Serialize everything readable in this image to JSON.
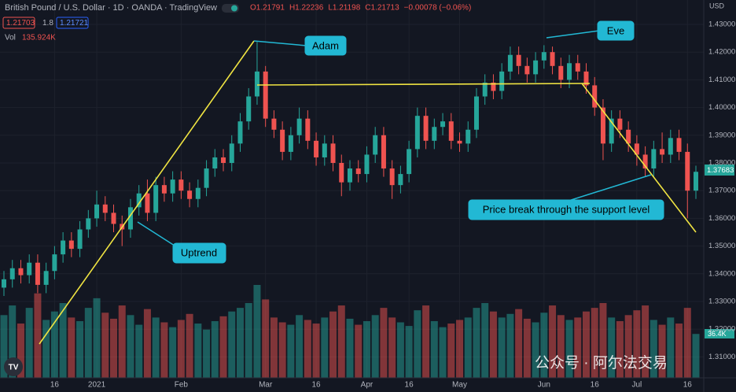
{
  "chart_data": {
    "type": "candlestick",
    "title": "British Pound / U.S. Dollar · 1D · OANDA · TradingView",
    "ohlc_legend": [
      "O1.21791",
      "H1.22236",
      "L1.21198",
      "C1.21713",
      "−0.00078 (−0.06%)"
    ],
    "bid": "1.21703",
    "spread": "1.8",
    "ask": "1.21721",
    "volume_name": "Vol",
    "volume_value": "135.924K",
    "volume_last": "36.4K",
    "currency": "USD",
    "current_price": "1.37683",
    "watermark": "公众号 · 阿尔法交易",
    "logo": "TV",
    "annotations": [
      "Adam",
      "Eve",
      "Uptrend",
      "Price break through the support level"
    ],
    "up_color": "#26a69a",
    "down_color": "#ef5350",
    "ylim": [
      1.30244,
      1.43881
    ],
    "yticks": [
      {
        "value": 1.31,
        "label": "1.31000"
      },
      {
        "value": 1.32,
        "label": "1.32000"
      },
      {
        "value": 1.33,
        "label": "1.33000"
      },
      {
        "value": 1.34,
        "label": "1.34000"
      },
      {
        "value": 1.35,
        "label": "1.35000"
      },
      {
        "value": 1.36,
        "label": "1.36000"
      },
      {
        "value": 1.37,
        "label": "1.37000"
      },
      {
        "value": 1.38,
        "label": "1.38000"
      },
      {
        "value": 1.39,
        "label": "1.39000"
      },
      {
        "value": 1.4,
        "label": "1.40000"
      },
      {
        "value": 1.41,
        "label": "1.41000"
      },
      {
        "value": 1.42,
        "label": "1.42000"
      },
      {
        "value": 1.43,
        "label": "1.43000"
      }
    ],
    "categories": [
      null,
      null,
      null,
      null,
      null,
      null,
      "16",
      null,
      null,
      null,
      null,
      "2021",
      null,
      null,
      null,
      null,
      null,
      null,
      null,
      null,
      null,
      "Feb",
      null,
      null,
      null,
      null,
      null,
      null,
      null,
      null,
      null,
      "Mar",
      null,
      null,
      null,
      null,
      null,
      "16",
      null,
      null,
      null,
      null,
      null,
      "Apr",
      null,
      null,
      null,
      null,
      "16",
      null,
      null,
      null,
      null,
      null,
      "May",
      null,
      null,
      null,
      null,
      null,
      null,
      null,
      null,
      null,
      "Jun",
      null,
      null,
      null,
      null,
      null,
      "16",
      null,
      null,
      null,
      null,
      "Jul",
      null,
      null,
      null,
      null,
      null,
      "16",
      null
    ],
    "open": [
      1.335,
      1.338,
      1.342,
      1.3395,
      1.344,
      1.336,
      1.341,
      1.347,
      1.352,
      1.349,
      1.356,
      1.36,
      1.365,
      1.362,
      1.358,
      1.356,
      1.364,
      1.369,
      1.362,
      1.372,
      1.369,
      1.374,
      1.37,
      1.367,
      1.371,
      1.378,
      1.382,
      1.38,
      1.387,
      1.395,
      1.404,
      1.413,
      1.396,
      1.392,
      1.384,
      1.39,
      1.396,
      1.388,
      1.382,
      1.387,
      1.38,
      1.373,
      1.378,
      1.376,
      1.383,
      1.39,
      1.378,
      1.372,
      1.376,
      1.385,
      1.397,
      1.388,
      1.393,
      1.395,
      1.388,
      1.387,
      1.392,
      1.404,
      1.409,
      1.406,
      1.413,
      1.419,
      1.415,
      1.412,
      1.417,
      1.42,
      1.415,
      1.41,
      1.416,
      1.413,
      1.408,
      1.4,
      1.387,
      1.396,
      1.392,
      1.387,
      1.383,
      1.378,
      1.385,
      1.383,
      1.389,
      1.384,
      1.37
    ],
    "high": [
      1.341,
      1.345,
      1.345,
      1.347,
      1.347,
      1.344,
      1.35,
      1.355,
      1.355,
      1.359,
      1.363,
      1.37,
      1.368,
      1.365,
      1.361,
      1.367,
      1.372,
      1.374,
      1.375,
      1.375,
      1.377,
      1.377,
      1.373,
      1.374,
      1.381,
      1.385,
      1.385,
      1.39,
      1.398,
      1.407,
      1.4237,
      1.415,
      1.399,
      1.395,
      1.393,
      1.4,
      1.399,
      1.391,
      1.39,
      1.39,
      1.383,
      1.381,
      1.381,
      1.386,
      1.393,
      1.393,
      1.381,
      1.379,
      1.388,
      1.4,
      1.4,
      1.396,
      1.398,
      1.398,
      1.391,
      1.395,
      1.407,
      1.412,
      1.412,
      1.416,
      1.422,
      1.422,
      1.418,
      1.42,
      1.4225,
      1.422,
      1.418,
      1.419,
      1.419,
      1.416,
      1.411,
      1.403,
      1.399,
      1.399,
      1.395,
      1.39,
      1.386,
      1.388,
      1.391,
      1.392,
      1.392,
      1.387,
      1.379
    ],
    "low": [
      1.332,
      1.335,
      1.3365,
      1.3365,
      1.333,
      1.333,
      1.338,
      1.344,
      1.346,
      1.346,
      1.353,
      1.357,
      1.359,
      1.355,
      1.35,
      1.353,
      1.361,
      1.359,
      1.359,
      1.366,
      1.366,
      1.367,
      1.364,
      1.364,
      1.368,
      1.375,
      1.377,
      1.377,
      1.384,
      1.392,
      1.401,
      1.393,
      1.389,
      1.381,
      1.381,
      1.387,
      1.385,
      1.379,
      1.379,
      1.377,
      1.368,
      1.37,
      1.373,
      1.373,
      1.38,
      1.375,
      1.367,
      1.369,
      1.373,
      1.382,
      1.385,
      1.385,
      1.39,
      1.385,
      1.384,
      1.384,
      1.389,
      1.401,
      1.403,
      1.403,
      1.41,
      1.412,
      1.409,
      1.409,
      1.414,
      1.412,
      1.407,
      1.407,
      1.41,
      1.405,
      1.397,
      1.381,
      1.384,
      1.389,
      1.384,
      1.379,
      1.375,
      1.375,
      1.38,
      1.38,
      1.381,
      1.36,
      1.367
    ],
    "close": [
      1.338,
      1.342,
      1.3395,
      1.344,
      1.336,
      1.341,
      1.347,
      1.352,
      1.349,
      1.356,
      1.36,
      1.365,
      1.362,
      1.358,
      1.356,
      1.364,
      1.369,
      1.362,
      1.372,
      1.369,
      1.374,
      1.37,
      1.367,
      1.371,
      1.378,
      1.382,
      1.38,
      1.387,
      1.395,
      1.404,
      1.413,
      1.396,
      1.392,
      1.384,
      1.39,
      1.396,
      1.388,
      1.382,
      1.387,
      1.38,
      1.373,
      1.378,
      1.376,
      1.383,
      1.39,
      1.378,
      1.372,
      1.376,
      1.385,
      1.397,
      1.388,
      1.393,
      1.395,
      1.388,
      1.387,
      1.392,
      1.404,
      1.409,
      1.406,
      1.413,
      1.419,
      1.415,
      1.412,
      1.417,
      1.42,
      1.415,
      1.41,
      1.416,
      1.413,
      1.408,
      1.4,
      1.387,
      1.396,
      1.392,
      1.387,
      1.383,
      1.378,
      1.385,
      1.383,
      1.389,
      1.384,
      1.37,
      1.3768
    ],
    "volume": [
      52,
      60,
      45,
      58,
      70,
      48,
      55,
      62,
      50,
      47,
      58,
      66,
      54,
      49,
      60,
      52,
      44,
      57,
      50,
      46,
      42,
      48,
      53,
      45,
      40,
      47,
      51,
      55,
      58,
      62,
      77,
      65,
      50,
      46,
      44,
      52,
      48,
      45,
      50,
      55,
      60,
      49,
      44,
      47,
      52,
      58,
      50,
      46,
      43,
      56,
      60,
      47,
      42,
      45,
      48,
      50,
      58,
      62,
      55,
      50,
      53,
      57,
      49,
      46,
      54,
      60,
      52,
      48,
      50,
      55,
      58,
      62,
      50,
      47,
      52,
      56,
      60,
      48,
      44,
      50,
      45,
      58,
      36.4
    ]
  }
}
